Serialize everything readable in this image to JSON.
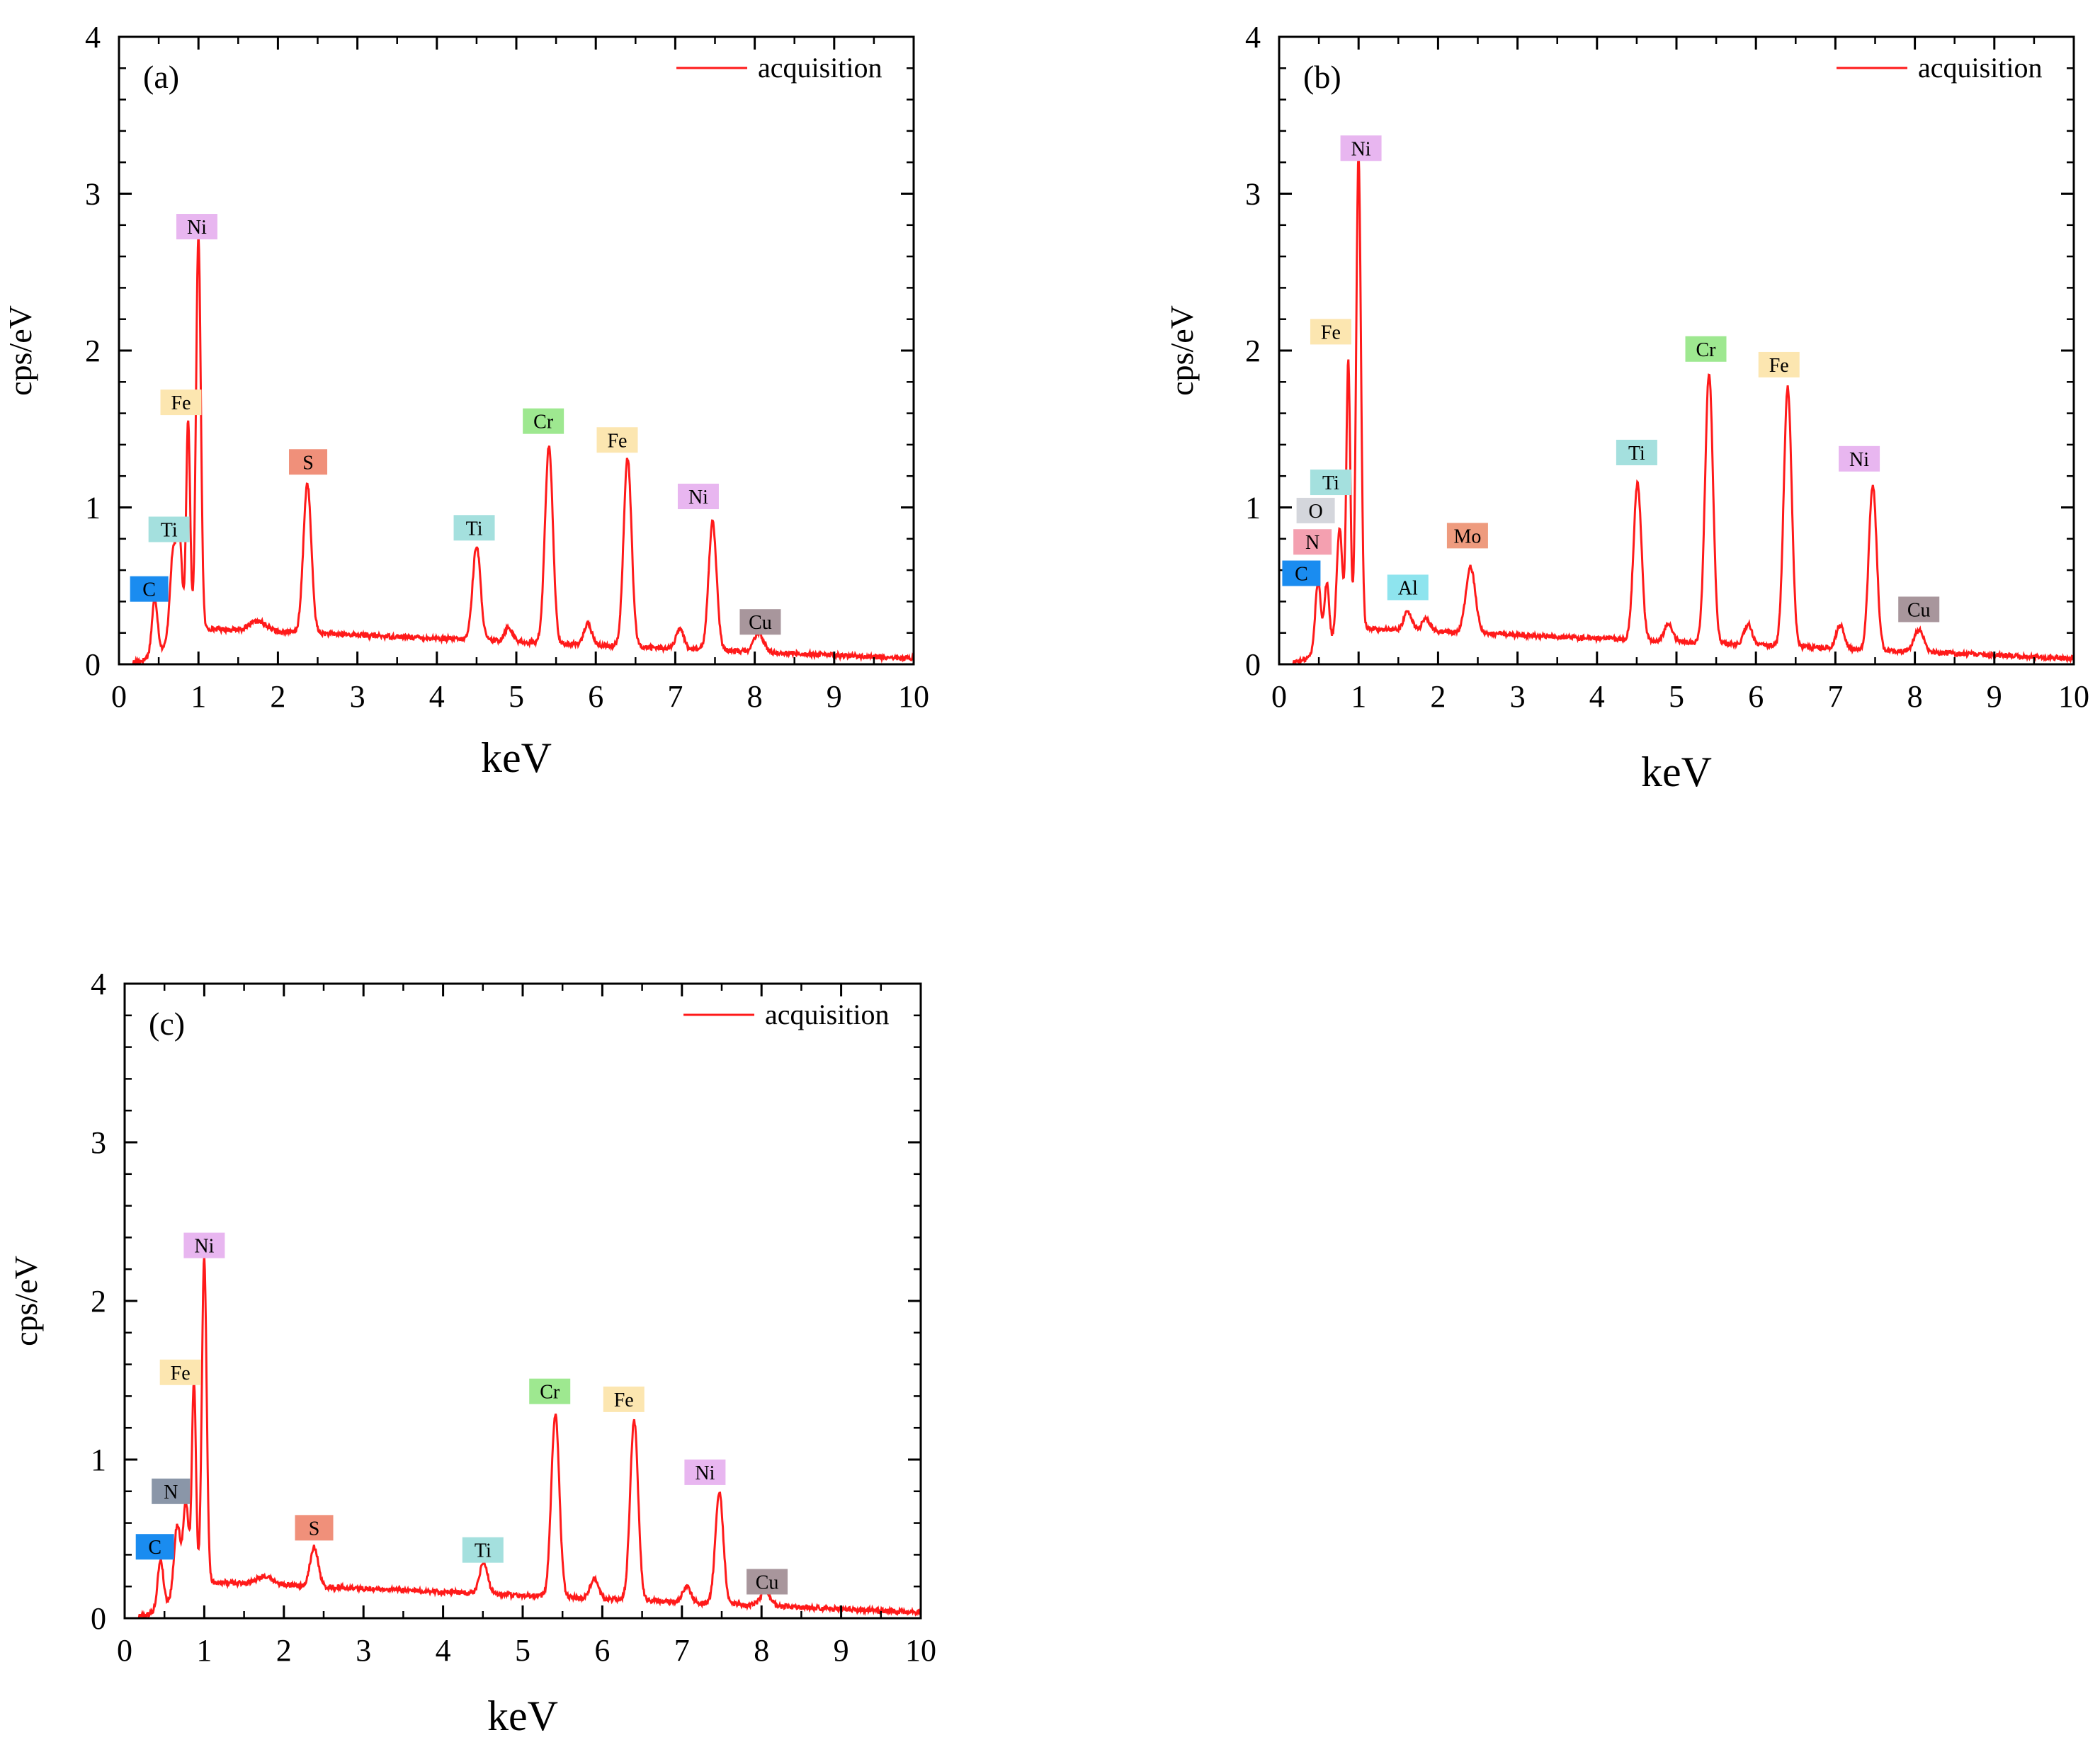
{
  "colors": {
    "spectrum": "#ff1a1a",
    "axis": "#000000",
    "badge": {
      "C": "#1a8cf0",
      "N_light": "#f4a0b0",
      "N_dark": "#8a96a8",
      "O": "#d4d6dc",
      "Ti": "#a4e0de",
      "Fe": "#fce6b0",
      "Ni": "#e8b6f0",
      "S": "#f0907a",
      "Cr": "#9ee890",
      "Cu": "#a8969c",
      "Al": "#8ee4ee",
      "Mo": "#ee9b7e"
    }
  },
  "chart_data": [
    {
      "type": "line",
      "panel_label": "(a)",
      "legend": "acquisition",
      "xlabel": "keV",
      "ylabel": "cps/eV",
      "xlim": [
        0,
        10
      ],
      "ylim": [
        0,
        4
      ],
      "xticks": [
        "0",
        "1",
        "2",
        "3",
        "4",
        "5",
        "6",
        "7",
        "8",
        "9",
        "10"
      ],
      "yticks": [
        "0",
        "1",
        "2",
        "3",
        "4"
      ],
      "peaks": [
        {
          "x": 0.45,
          "y": 0.35,
          "w": 0.035
        },
        {
          "x": 0.68,
          "y": 0.55,
          "w": 0.04
        },
        {
          "x": 0.76,
          "y": 0.6,
          "w": 0.035
        },
        {
          "x": 0.87,
          "y": 1.35,
          "w": 0.025
        },
        {
          "x": 1.0,
          "y": 2.48,
          "w": 0.03
        },
        {
          "x": 1.75,
          "y": 0.06,
          "w": 0.1
        },
        {
          "x": 2.37,
          "y": 0.95,
          "w": 0.05
        },
        {
          "x": 4.5,
          "y": 0.6,
          "w": 0.05
        },
        {
          "x": 4.9,
          "y": 0.09,
          "w": 0.05
        },
        {
          "x": 5.41,
          "y": 1.25,
          "w": 0.05
        },
        {
          "x": 5.9,
          "y": 0.13,
          "w": 0.05
        },
        {
          "x": 6.4,
          "y": 1.2,
          "w": 0.05
        },
        {
          "x": 7.06,
          "y": 0.12,
          "w": 0.05
        },
        {
          "x": 7.47,
          "y": 0.82,
          "w": 0.05
        },
        {
          "x": 8.05,
          "y": 0.12,
          "w": 0.06
        }
      ],
      "labels": [
        {
          "text": "C",
          "x": 0.38,
          "y": 0.48,
          "color": "C"
        },
        {
          "text": "Ti",
          "x": 0.63,
          "y": 0.86,
          "color": "Ti"
        },
        {
          "text": "Fe",
          "x": 0.78,
          "y": 1.67,
          "color": "Fe"
        },
        {
          "text": "Ni",
          "x": 0.98,
          "y": 2.79,
          "color": "Ni"
        },
        {
          "text": "S",
          "x": 2.38,
          "y": 1.29,
          "color": "S"
        },
        {
          "text": "Ti",
          "x": 4.47,
          "y": 0.87,
          "color": "Ti"
        },
        {
          "text": "Cr",
          "x": 5.34,
          "y": 1.55,
          "color": "Cr"
        },
        {
          "text": "Fe",
          "x": 6.27,
          "y": 1.43,
          "color": "Fe"
        },
        {
          "text": "Ni",
          "x": 7.29,
          "y": 1.07,
          "color": "Ni"
        },
        {
          "text": "Cu",
          "x": 8.07,
          "y": 0.27,
          "color": "Cu"
        }
      ]
    },
    {
      "type": "line",
      "panel_label": "(b)",
      "legend": "acquisition",
      "xlabel": "keV",
      "ylabel": "cps/eV",
      "xlim": [
        0,
        10
      ],
      "ylim": [
        0,
        4
      ],
      "xticks": [
        "0",
        "1",
        "2",
        "3",
        "4",
        "5",
        "6",
        "7",
        "8",
        "9",
        "10"
      ],
      "yticks": [
        "0",
        "1",
        "2",
        "3",
        "4"
      ],
      "peaks": [
        {
          "x": 0.49,
          "y": 0.45,
          "w": 0.035
        },
        {
          "x": 0.6,
          "y": 0.4,
          "w": 0.03
        },
        {
          "x": 0.76,
          "y": 0.7,
          "w": 0.035
        },
        {
          "x": 0.87,
          "y": 1.72,
          "w": 0.025
        },
        {
          "x": 1.0,
          "y": 3.0,
          "w": 0.03
        },
        {
          "x": 1.62,
          "y": 0.12,
          "w": 0.05
        },
        {
          "x": 1.85,
          "y": 0.08,
          "w": 0.05
        },
        {
          "x": 2.41,
          "y": 0.42,
          "w": 0.06
        },
        {
          "x": 4.51,
          "y": 1.0,
          "w": 0.05
        },
        {
          "x": 4.9,
          "y": 0.12,
          "w": 0.05
        },
        {
          "x": 5.41,
          "y": 1.72,
          "w": 0.05
        },
        {
          "x": 5.9,
          "y": 0.13,
          "w": 0.05
        },
        {
          "x": 6.4,
          "y": 1.65,
          "w": 0.05
        },
        {
          "x": 7.06,
          "y": 0.15,
          "w": 0.05
        },
        {
          "x": 7.47,
          "y": 1.05,
          "w": 0.05
        },
        {
          "x": 8.05,
          "y": 0.14,
          "w": 0.06
        }
      ],
      "labels": [
        {
          "text": "C",
          "x": 0.28,
          "y": 0.58,
          "color": "C"
        },
        {
          "text": "N",
          "x": 0.42,
          "y": 0.78,
          "color": "N_light"
        },
        {
          "text": "O",
          "x": 0.46,
          "y": 0.98,
          "color": "O"
        },
        {
          "text": "Ti",
          "x": 0.65,
          "y": 1.16,
          "color": "Ti"
        },
        {
          "text": "Fe",
          "x": 0.65,
          "y": 2.12,
          "color": "Fe"
        },
        {
          "text": "Ni",
          "x": 1.03,
          "y": 3.29,
          "color": "Ni"
        },
        {
          "text": "Al",
          "x": 1.62,
          "y": 0.49,
          "color": "Al"
        },
        {
          "text": "Mo",
          "x": 2.37,
          "y": 0.82,
          "color": "Mo"
        },
        {
          "text": "Ti",
          "x": 4.5,
          "y": 1.35,
          "color": "Ti"
        },
        {
          "text": "Cr",
          "x": 5.37,
          "y": 2.01,
          "color": "Cr"
        },
        {
          "text": "Fe",
          "x": 6.29,
          "y": 1.91,
          "color": "Fe"
        },
        {
          "text": "Ni",
          "x": 7.3,
          "y": 1.31,
          "color": "Ni"
        },
        {
          "text": "Cu",
          "x": 8.05,
          "y": 0.35,
          "color": "Cu"
        }
      ]
    },
    {
      "type": "line",
      "panel_label": "(c)",
      "legend": "acquisition",
      "xlabel": "keV",
      "ylabel": "cps/eV",
      "xlim": [
        0,
        10
      ],
      "ylim": [
        0,
        4
      ],
      "xticks": [
        "0",
        "1",
        "2",
        "3",
        "4",
        "5",
        "6",
        "7",
        "8",
        "9",
        "10"
      ],
      "yticks": [
        "0",
        "1",
        "2",
        "3",
        "4"
      ],
      "peaks": [
        {
          "x": 0.45,
          "y": 0.3,
          "w": 0.035
        },
        {
          "x": 0.66,
          "y": 0.45,
          "w": 0.04
        },
        {
          "x": 0.77,
          "y": 0.55,
          "w": 0.035
        },
        {
          "x": 0.87,
          "y": 1.28,
          "w": 0.025
        },
        {
          "x": 1.0,
          "y": 2.03,
          "w": 0.03
        },
        {
          "x": 1.75,
          "y": 0.05,
          "w": 0.1
        },
        {
          "x": 2.38,
          "y": 0.25,
          "w": 0.05
        },
        {
          "x": 4.51,
          "y": 0.2,
          "w": 0.05
        },
        {
          "x": 5.41,
          "y": 1.15,
          "w": 0.05
        },
        {
          "x": 5.9,
          "y": 0.13,
          "w": 0.05
        },
        {
          "x": 6.4,
          "y": 1.13,
          "w": 0.05
        },
        {
          "x": 7.06,
          "y": 0.1,
          "w": 0.05
        },
        {
          "x": 7.47,
          "y": 0.7,
          "w": 0.05
        },
        {
          "x": 8.05,
          "y": 0.1,
          "w": 0.06
        }
      ],
      "labels": [
        {
          "text": "C",
          "x": 0.38,
          "y": 0.45,
          "color": "C"
        },
        {
          "text": "N",
          "x": 0.58,
          "y": 0.8,
          "color": "N_dark"
        },
        {
          "text": "Fe",
          "x": 0.7,
          "y": 1.55,
          "color": "Fe"
        },
        {
          "text": "Ni",
          "x": 1.0,
          "y": 2.35,
          "color": "Ni"
        },
        {
          "text": "S",
          "x": 2.38,
          "y": 0.57,
          "color": "S"
        },
        {
          "text": "Ti",
          "x": 4.5,
          "y": 0.43,
          "color": "Ti"
        },
        {
          "text": "Cr",
          "x": 5.34,
          "y": 1.43,
          "color": "Cr"
        },
        {
          "text": "Fe",
          "x": 6.27,
          "y": 1.38,
          "color": "Fe"
        },
        {
          "text": "Ni",
          "x": 7.29,
          "y": 0.92,
          "color": "Ni"
        },
        {
          "text": "Cu",
          "x": 8.07,
          "y": 0.23,
          "color": "Cu"
        }
      ]
    }
  ]
}
